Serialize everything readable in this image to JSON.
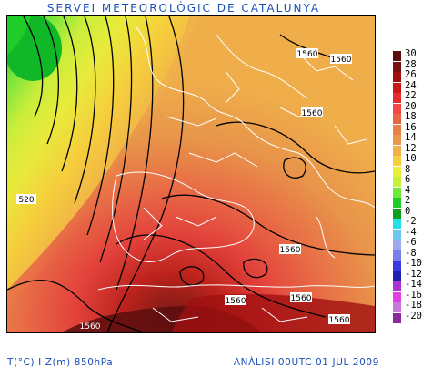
{
  "header": {
    "title": "SERVEI METEOROLÒGIC DE CATALUNYA"
  },
  "footer": {
    "variables": "T(°C) I Z(m) 850hPa",
    "analysis": "ANÀLISI 00UTC 01 JUL 2009"
  },
  "map": {
    "contour_labels": [
      {
        "id": "z-520",
        "text": "520"
      },
      {
        "id": "z-1560-a",
        "text": "1560"
      },
      {
        "id": "z-1560-b",
        "text": "1560"
      },
      {
        "id": "z-1560-c",
        "text": "1560"
      },
      {
        "id": "z-1560-d",
        "text": "1560"
      },
      {
        "id": "z-1560-e",
        "text": "1560"
      },
      {
        "id": "z-1560-f",
        "text": "1560"
      },
      {
        "id": "z-1560-g",
        "text": "1560"
      },
      {
        "id": "z-1560-h",
        "text": "1560"
      }
    ]
  },
  "legend": {
    "items": [
      {
        "label": "30",
        "color": "#5a0e0e"
      },
      {
        "label": "28",
        "color": "#7a1010"
      },
      {
        "label": "26",
        "color": "#a01010"
      },
      {
        "label": "24",
        "color": "#c81818"
      },
      {
        "label": "22",
        "color": "#e52c2c"
      },
      {
        "label": "20",
        "color": "#f04848"
      },
      {
        "label": "18",
        "color": "#e86446"
      },
      {
        "label": "16",
        "color": "#e9804a"
      },
      {
        "label": "14",
        "color": "#e89a4a"
      },
      {
        "label": "12",
        "color": "#f0b04a"
      },
      {
        "label": "10",
        "color": "#f6d03c"
      },
      {
        "label": "8",
        "color": "#e8ee3a"
      },
      {
        "label": "6",
        "color": "#c8f03a"
      },
      {
        "label": "4",
        "color": "#6ee83a"
      },
      {
        "label": "2",
        "color": "#20cc28"
      },
      {
        "label": "0",
        "color": "#10a020"
      },
      {
        "label": "-2",
        "color": "#22e0e8"
      },
      {
        "label": "-4",
        "color": "#6ec6f0"
      },
      {
        "label": "-6",
        "color": "#a0a8f0"
      },
      {
        "label": "-8",
        "color": "#7e7ee8"
      },
      {
        "label": "-10",
        "color": "#3a3ae0"
      },
      {
        "label": "-12",
        "color": "#1e1eb0"
      },
      {
        "label": "-14",
        "color": "#b030d0"
      },
      {
        "label": "-16",
        "color": "#e040e0"
      },
      {
        "label": "-18",
        "color": "#c878d8"
      },
      {
        "label": "-20",
        "color": "#8a2aa0"
      }
    ]
  }
}
